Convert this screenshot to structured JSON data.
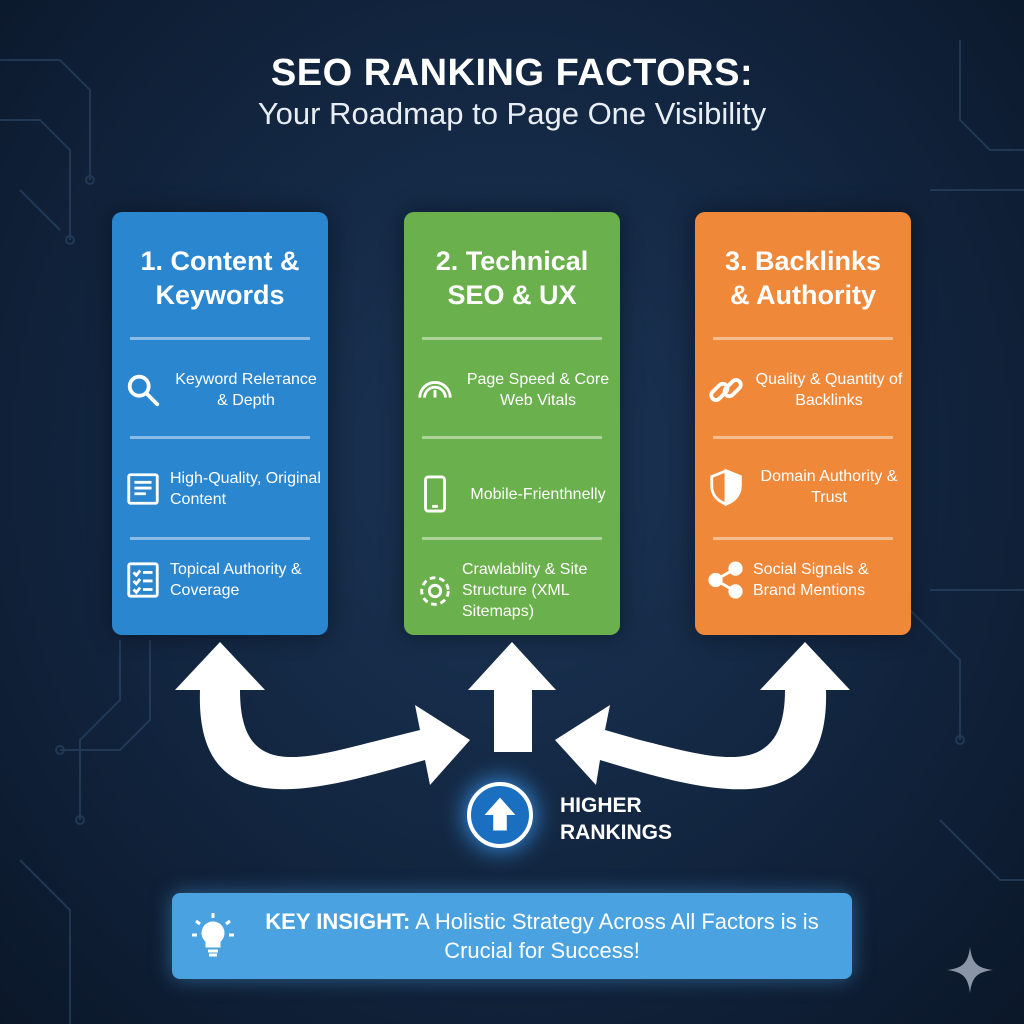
{
  "header": {
    "title": "SEO RANKING FACTORS:",
    "subtitle": "Your Roadmap to Page One Visibility"
  },
  "colors": {
    "background": "#12253f",
    "content": "#2a86cf",
    "technical": "#6ab04c",
    "backlinks": "#f0883a",
    "insight": "#4aa3e0"
  },
  "cards": [
    {
      "title": "1. Content & Keywords",
      "items": [
        {
          "icon": "magnifier-icon",
          "text": "Keyword Releтance & Depth"
        },
        {
          "icon": "document-icon",
          "text": "High-Quality, Original Content"
        },
        {
          "icon": "checklist-icon",
          "text": "Topical Authority & Coverage"
        }
      ]
    },
    {
      "title": "2. Technical SEO & UX",
      "items": [
        {
          "icon": "speedometer-icon",
          "text": "Page Speed & Core Web Vitals"
        },
        {
          "icon": "mobile-phone-icon",
          "text": "Mobile-Frienthnelly"
        },
        {
          "icon": "gear-icon",
          "text": "Crawlablity & Site Structure (XML Sitemaps)"
        }
      ]
    },
    {
      "title": "3. Backlinks & Authority",
      "items": [
        {
          "icon": "link-icon",
          "text": "Quality & Quantity of Backlinks"
        },
        {
          "icon": "shield-icon",
          "text": "Domain Authority & Trust"
        },
        {
          "icon": "share-icon",
          "text": "Social Signals & Brand Mentions"
        }
      ]
    }
  ],
  "hub": {
    "label_line1": "HIGHER",
    "label_line2": "RANKINGS",
    "icon": "arrow-up-icon"
  },
  "insight": {
    "icon": "lightbulb-icon",
    "label": "KEY INSIGHT:",
    "text": " A Holistic Strategy Across All Factors is is Crucial for Success!"
  }
}
